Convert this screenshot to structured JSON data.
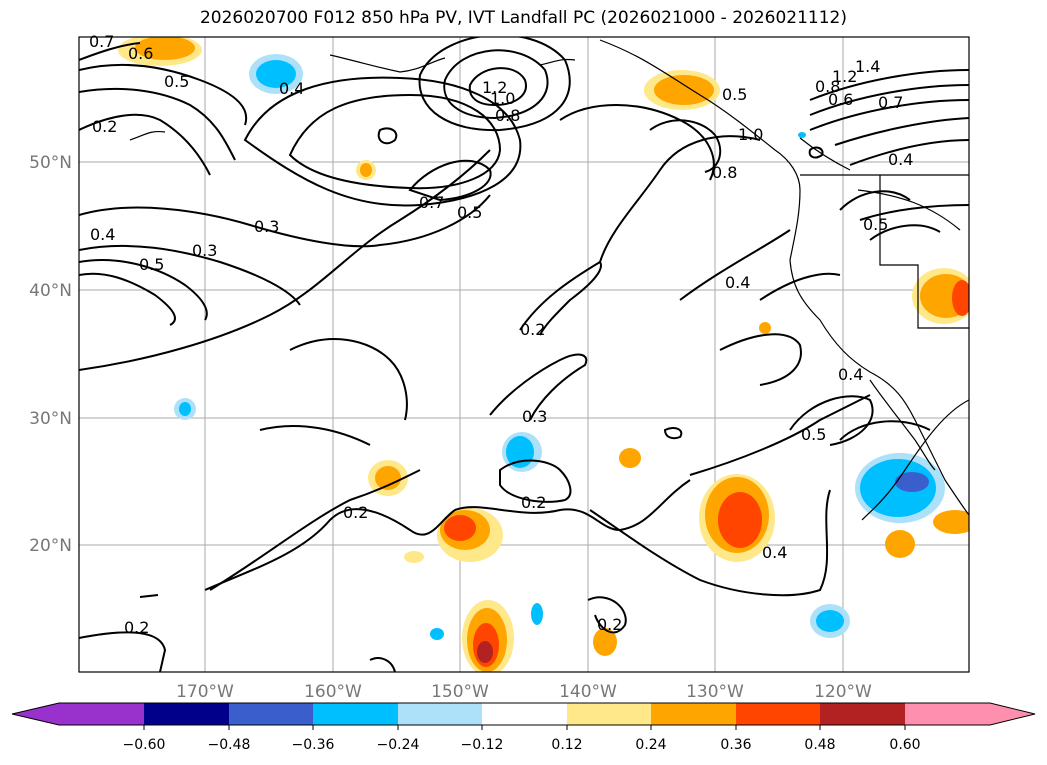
{
  "title": "2026020700 F012 850 hPa PV, IVT Landfall PC (2026021000 - 2026021112)",
  "map": {
    "lon_labels": [
      "170°W",
      "160°W",
      "150°W",
      "140°W",
      "130°W",
      "120°W"
    ],
    "lat_labels": [
      "50°N",
      "40°N",
      "30°N",
      "20°N"
    ],
    "contour_labels": [
      {
        "text": "0.7"
      },
      {
        "text": "0.6"
      },
      {
        "text": "0.5"
      },
      {
        "text": "0.4"
      },
      {
        "text": "0.2"
      },
      {
        "text": "1.2"
      },
      {
        "text": "1.0"
      },
      {
        "text": "0.8"
      },
      {
        "text": "0.7"
      },
      {
        "text": "0.5"
      },
      {
        "text": "0.3"
      },
      {
        "text": "0.4"
      },
      {
        "text": "0.5"
      },
      {
        "text": "0.3"
      },
      {
        "text": "0.2"
      },
      {
        "text": "0.3"
      },
      {
        "text": "0.2"
      },
      {
        "text": "0.2"
      },
      {
        "text": "0.2"
      },
      {
        "text": "0.2"
      },
      {
        "text": "0.4"
      },
      {
        "text": "0.5"
      },
      {
        "text": "0.4"
      },
      {
        "text": "0.4"
      },
      {
        "text": "0.5"
      },
      {
        "text": "0.8"
      },
      {
        "text": "1.0"
      },
      {
        "text": "0.5"
      },
      {
        "text": "0.8"
      },
      {
        "text": "1.2"
      },
      {
        "text": "1.4"
      },
      {
        "text": "0.6"
      },
      {
        "text": "0.7"
      },
      {
        "text": "0.4"
      }
    ]
  },
  "colorbar": {
    "ticks": [
      "−0.60",
      "−0.48",
      "−0.36",
      "−0.24",
      "−0.12",
      "0.12",
      "0.24",
      "0.36",
      "0.48",
      "0.60"
    ],
    "colors": [
      "#9932CC",
      "#00008B",
      "#3A5FCD",
      "#00BFFF",
      "#ADE1FA",
      "#FFFFFF",
      "#FFE88A",
      "#FFA500",
      "#FF4500",
      "#B22222",
      "#FF8FAF"
    ]
  }
}
